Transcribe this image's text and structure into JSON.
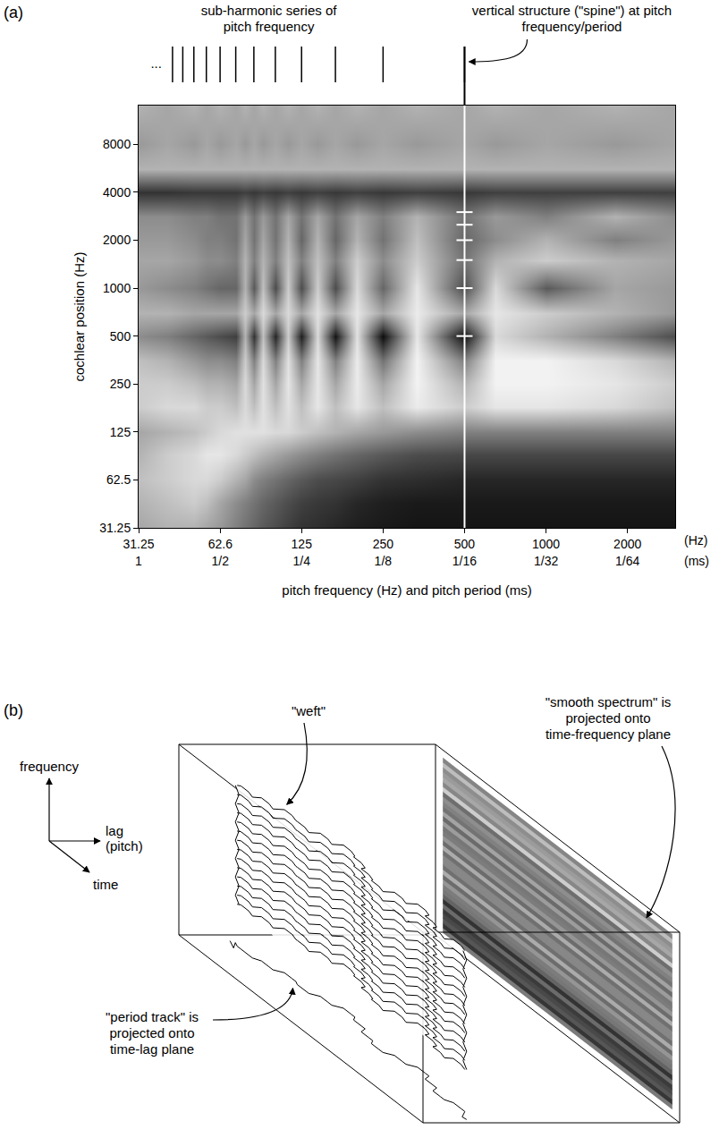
{
  "chart_data": {
    "type": "heatmap",
    "panel_label": "(a)",
    "xlabel": "pitch frequency (Hz) and pitch period (ms)",
    "ylabel": "cochlear position (Hz)",
    "x_unit": "(Hz)",
    "x2_unit": "(ms)",
    "log": true,
    "grid": false,
    "xlim": [
      31.25,
      3000
    ],
    "ylim": [
      31.25,
      14000
    ],
    "xticks": [
      31.25,
      62.6,
      125,
      250,
      500,
      1000,
      2000
    ],
    "x2ticks": [
      {
        "value": 31.25,
        "label": "1"
      },
      {
        "value": 62.6,
        "label": "1/2"
      },
      {
        "value": 125,
        "label": "1/4"
      },
      {
        "value": 250,
        "label": "1/8"
      },
      {
        "value": 500,
        "label": "1/16"
      },
      {
        "value": 1000,
        "label": "1/32"
      },
      {
        "value": 2000,
        "label": "1/64"
      }
    ],
    "yticks": [
      31.25,
      62.5,
      125,
      250,
      500,
      1000,
      2000,
      4000,
      8000
    ],
    "color_range": [
      0,
      1
    ],
    "x": [
      31.25,
      40,
      50,
      55.6,
      62.5,
      71.4,
      77,
      83.3,
      90,
      100,
      111,
      125,
      143,
      166.7,
      200,
      250,
      333,
      500,
      650,
      1000,
      1800,
      3000
    ],
    "y": [
      31.25,
      45,
      62.5,
      90,
      125,
      180,
      250,
      350,
      500,
      700,
      1000,
      1500,
      2000,
      2800,
      4000,
      5600,
      8000,
      14000
    ],
    "cells": [
      [
        0.35,
        0.3,
        0.3,
        0.35,
        0.4,
        0.5,
        0.55,
        0.6,
        0.65,
        0.7,
        0.75,
        0.8,
        0.82,
        0.85,
        0.88,
        0.9,
        0.92,
        0.92,
        0.92,
        0.92,
        0.92,
        0.92
      ],
      [
        0.3,
        0.25,
        0.2,
        0.25,
        0.35,
        0.45,
        0.5,
        0.55,
        0.6,
        0.65,
        0.7,
        0.75,
        0.78,
        0.8,
        0.85,
        0.88,
        0.9,
        0.9,
        0.9,
        0.9,
        0.9,
        0.9
      ],
      [
        0.25,
        0.2,
        0.15,
        0.15,
        0.2,
        0.3,
        0.35,
        0.45,
        0.5,
        0.55,
        0.6,
        0.65,
        0.7,
        0.72,
        0.75,
        0.8,
        0.82,
        0.85,
        0.85,
        0.85,
        0.85,
        0.85
      ],
      [
        0.3,
        0.2,
        0.15,
        0.1,
        0.1,
        0.15,
        0.2,
        0.25,
        0.3,
        0.35,
        0.4,
        0.45,
        0.5,
        0.55,
        0.6,
        0.65,
        0.7,
        0.72,
        0.72,
        0.72,
        0.72,
        0.72
      ],
      [
        0.35,
        0.3,
        0.25,
        0.2,
        0.15,
        0.12,
        0.12,
        0.12,
        0.12,
        0.15,
        0.15,
        0.2,
        0.25,
        0.3,
        0.35,
        0.4,
        0.45,
        0.5,
        0.5,
        0.5,
        0.5,
        0.5
      ],
      [
        0.2,
        0.15,
        0.15,
        0.2,
        0.2,
        0.25,
        0.15,
        0.25,
        0.12,
        0.25,
        0.12,
        0.25,
        0.1,
        0.25,
        0.1,
        0.25,
        0.08,
        0.2,
        0.1,
        0.1,
        0.15,
        0.25
      ],
      [
        0.2,
        0.2,
        0.25,
        0.3,
        0.3,
        0.35,
        0.15,
        0.35,
        0.12,
        0.35,
        0.1,
        0.35,
        0.1,
        0.35,
        0.08,
        0.35,
        0.05,
        0.3,
        0.05,
        0.05,
        0.1,
        0.2
      ],
      [
        0.25,
        0.3,
        0.4,
        0.45,
        0.45,
        0.5,
        0.2,
        0.5,
        0.15,
        0.5,
        0.12,
        0.5,
        0.1,
        0.5,
        0.08,
        0.55,
        0.05,
        0.5,
        0.05,
        0.05,
        0.15,
        0.3
      ],
      [
        0.45,
        0.5,
        0.6,
        0.65,
        0.7,
        0.75,
        0.3,
        0.8,
        0.25,
        0.85,
        0.2,
        0.88,
        0.15,
        0.92,
        0.12,
        0.95,
        0.1,
        0.95,
        0.15,
        0.3,
        0.5,
        0.7
      ],
      [
        0.3,
        0.3,
        0.35,
        0.35,
        0.35,
        0.35,
        0.2,
        0.35,
        0.15,
        0.35,
        0.15,
        0.35,
        0.12,
        0.35,
        0.1,
        0.35,
        0.08,
        0.35,
        0.1,
        0.2,
        0.3,
        0.4
      ],
      [
        0.4,
        0.45,
        0.5,
        0.55,
        0.6,
        0.6,
        0.3,
        0.65,
        0.25,
        0.7,
        0.2,
        0.7,
        0.2,
        0.7,
        0.15,
        0.6,
        0.1,
        0.7,
        0.15,
        0.65,
        0.35,
        0.4
      ],
      [
        0.35,
        0.35,
        0.4,
        0.45,
        0.45,
        0.5,
        0.3,
        0.5,
        0.3,
        0.5,
        0.25,
        0.5,
        0.25,
        0.5,
        0.2,
        0.45,
        0.2,
        0.55,
        0.3,
        0.2,
        0.3,
        0.35
      ],
      [
        0.4,
        0.4,
        0.45,
        0.5,
        0.5,
        0.55,
        0.35,
        0.55,
        0.35,
        0.55,
        0.3,
        0.6,
        0.3,
        0.6,
        0.3,
        0.55,
        0.25,
        0.6,
        0.45,
        0.3,
        0.5,
        0.4
      ],
      [
        0.45,
        0.45,
        0.5,
        0.5,
        0.55,
        0.55,
        0.4,
        0.55,
        0.4,
        0.55,
        0.35,
        0.55,
        0.35,
        0.55,
        0.35,
        0.5,
        0.3,
        0.55,
        0.4,
        0.5,
        0.3,
        0.45
      ],
      [
        0.8,
        0.8,
        0.78,
        0.78,
        0.78,
        0.78,
        0.75,
        0.78,
        0.75,
        0.78,
        0.75,
        0.78,
        0.75,
        0.78,
        0.75,
        0.78,
        0.75,
        0.78,
        0.75,
        0.75,
        0.75,
        0.75
      ],
      [
        0.3,
        0.3,
        0.3,
        0.3,
        0.3,
        0.3,
        0.3,
        0.3,
        0.3,
        0.3,
        0.3,
        0.3,
        0.3,
        0.3,
        0.3,
        0.3,
        0.3,
        0.3,
        0.3,
        0.3,
        0.3,
        0.3
      ],
      [
        0.4,
        0.35,
        0.4,
        0.35,
        0.4,
        0.35,
        0.4,
        0.35,
        0.4,
        0.35,
        0.4,
        0.35,
        0.4,
        0.35,
        0.4,
        0.35,
        0.4,
        0.35,
        0.4,
        0.35,
        0.4,
        0.35
      ],
      [
        0.3,
        0.35,
        0.3,
        0.35,
        0.3,
        0.35,
        0.3,
        0.35,
        0.3,
        0.35,
        0.3,
        0.35,
        0.3,
        0.35,
        0.3,
        0.35,
        0.3,
        0.35,
        0.3,
        0.35,
        0.3,
        0.35
      ]
    ],
    "subharmonics": {
      "label": "sub-harmonic series of pitch frequency",
      "continuation": "...",
      "x": [
        500,
        250,
        166.7,
        125,
        100,
        83.3,
        71.4,
        62.5,
        55.6,
        50,
        45.5,
        41.7
      ]
    },
    "spine": {
      "label": "vertical structure (\"spine\") at pitch frequency/period",
      "x": 500,
      "marks": [
        500,
        1000,
        1500,
        2000,
        2500,
        3000
      ]
    }
  },
  "diagram": {
    "panel_label": "(b)",
    "axes": {
      "up": "frequency",
      "right": "lag (pitch)",
      "diagonal": "time"
    },
    "labels": {
      "weft": "\"weft\"",
      "smooth_spectrum": "\"smooth spectrum\" is projected onto time-frequency plane",
      "period_track": "\"period track\" is projected onto time-lag plane"
    }
  }
}
